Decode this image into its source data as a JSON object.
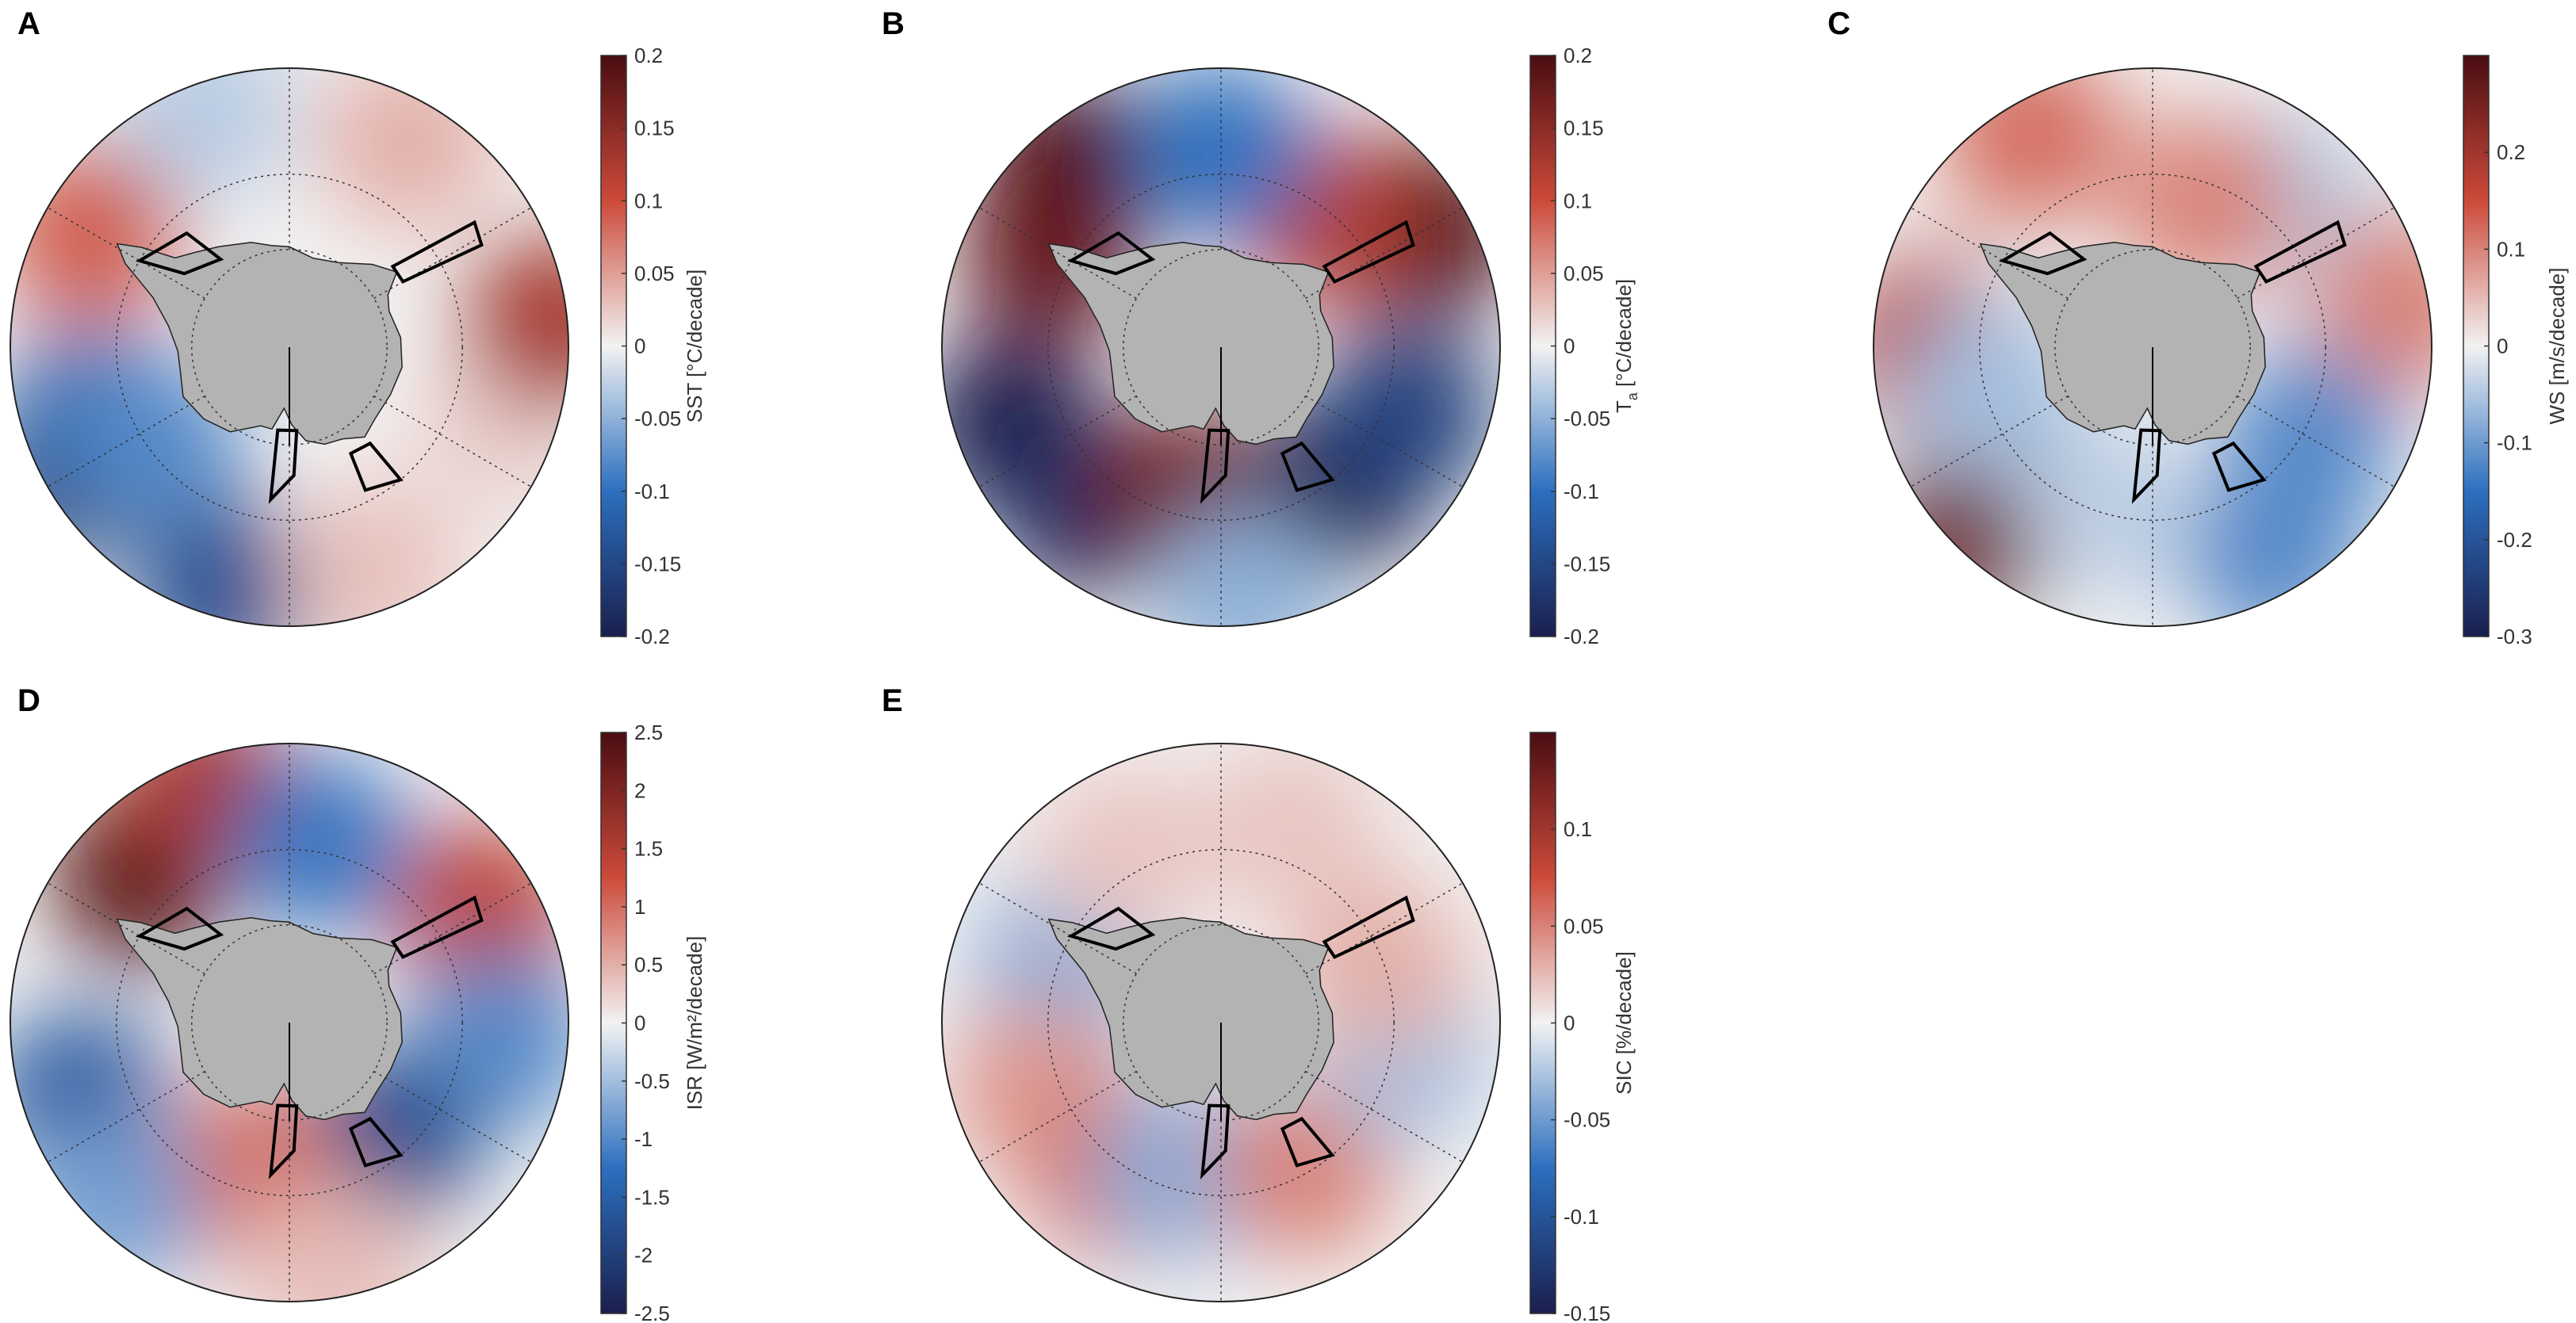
{
  "figure": {
    "panels": [
      "A",
      "B",
      "C",
      "D",
      "E"
    ]
  },
  "colors": {
    "land": "#b3b3b3",
    "cmap_low": "#1a1f4d",
    "cmap_mid_low": "#2c6fbf",
    "cmap_center": "#f2f2f2",
    "cmap_mid_high": "#cc4a3a",
    "cmap_high": "#4a0d12",
    "outline": "#000000"
  },
  "chart_data": [
    {
      "type": "heatmap",
      "panel": "A",
      "projection": "south-polar-stereographic",
      "colorbar": {
        "label": "SST [°C/decade]",
        "range": [
          -0.2,
          0.2
        ],
        "ticks": [
          "0.2",
          "0.15",
          "0.1",
          "0.05",
          "0",
          "-0.05",
          "-0.1",
          "-0.15",
          "-0.2"
        ]
      },
      "regions": [
        {
          "lon": 240,
          "r": 0.9,
          "value": -0.19
        },
        {
          "lon": 250,
          "r": 0.75,
          "value": -0.12
        },
        {
          "lon": 235,
          "r": 0.6,
          "value": -0.08
        },
        {
          "lon": 195,
          "r": 0.9,
          "value": -0.14
        },
        {
          "lon": 300,
          "r": 0.82,
          "value": 0.09
        },
        {
          "lon": 30,
          "r": 0.85,
          "value": 0.04
        },
        {
          "lon": 110,
          "r": 0.8,
          "value": 0.02
        },
        {
          "lon": 160,
          "r": 0.85,
          "value": 0.03
        },
        {
          "lon": 85,
          "r": 0.95,
          "value": 0.13
        },
        {
          "lon": 340,
          "r": 0.9,
          "value": -0.03
        }
      ]
    },
    {
      "type": "heatmap",
      "panel": "B",
      "projection": "south-polar-stereographic",
      "colorbar": {
        "label": "Ta [°C/decade]",
        "label_main": "T",
        "label_sub": "a",
        "label_rest": " [°C/decade]",
        "range": [
          -0.2,
          0.2
        ],
        "ticks": [
          "0.2",
          "0.15",
          "0.1",
          "0.05",
          "0",
          "-0.05",
          "-0.1",
          "-0.15",
          "-0.2"
        ]
      },
      "regions": [
        {
          "lon": 320,
          "r": 0.85,
          "value": 0.2
        },
        {
          "lon": 300,
          "r": 0.7,
          "value": 0.18
        },
        {
          "lon": 60,
          "r": 0.85,
          "value": 0.2
        },
        {
          "lon": 40,
          "r": 0.6,
          "value": 0.12
        },
        {
          "lon": 0,
          "r": 0.7,
          "value": -0.1
        },
        {
          "lon": 250,
          "r": 0.8,
          "value": -0.2
        },
        {
          "lon": 220,
          "r": 0.75,
          "value": -0.18
        },
        {
          "lon": 195,
          "r": 0.55,
          "value": 0.17
        },
        {
          "lon": 140,
          "r": 0.65,
          "value": -0.2
        },
        {
          "lon": 110,
          "r": 0.7,
          "value": -0.16
        },
        {
          "lon": 175,
          "r": 0.9,
          "value": -0.05
        }
      ]
    },
    {
      "type": "heatmap",
      "panel": "C",
      "projection": "south-polar-stereographic",
      "colorbar": {
        "label": "WS [m/s/decade]",
        "range": [
          -0.3,
          0.3
        ],
        "ticks": [
          "0.2",
          "0.1",
          "0",
          "-0.1",
          "-0.2",
          "-0.3"
        ]
      },
      "regions": [
        {
          "lon": 330,
          "r": 0.88,
          "value": 0.12
        },
        {
          "lon": 270,
          "r": 0.8,
          "value": 0.18
        },
        {
          "lon": 225,
          "r": 0.92,
          "value": 0.26
        },
        {
          "lon": 40,
          "r": 0.7,
          "value": -0.05
        },
        {
          "lon": 20,
          "r": 0.55,
          "value": 0.1
        },
        {
          "lon": 80,
          "r": 0.9,
          "value": 0.1
        },
        {
          "lon": 120,
          "r": 0.65,
          "value": -0.12
        },
        {
          "lon": 150,
          "r": 0.85,
          "value": -0.12
        },
        {
          "lon": 195,
          "r": 0.6,
          "value": -0.04
        },
        {
          "lon": 255,
          "r": 0.6,
          "value": -0.06
        }
      ]
    },
    {
      "type": "heatmap",
      "panel": "D",
      "projection": "south-polar-stereographic",
      "colorbar": {
        "label": "ISR [W/m²/decade]",
        "range": [
          -2.5,
          2.5
        ],
        "ticks": [
          "2.5",
          "2",
          "1.5",
          "1",
          "0.5",
          "0",
          "-0.5",
          "-1",
          "-1.5",
          "-2",
          "-2.5"
        ]
      },
      "regions": [
        {
          "lon": 315,
          "r": 0.75,
          "value": 2.4
        },
        {
          "lon": 340,
          "r": 0.9,
          "value": 1.6
        },
        {
          "lon": 10,
          "r": 0.65,
          "value": -1.2
        },
        {
          "lon": 60,
          "r": 0.8,
          "value": 1.4
        },
        {
          "lon": 95,
          "r": 0.75,
          "value": -1.0
        },
        {
          "lon": 140,
          "r": 0.55,
          "value": -1.8
        },
        {
          "lon": 195,
          "r": 0.55,
          "value": 1.0
        },
        {
          "lon": 250,
          "r": 0.8,
          "value": -1.6
        },
        {
          "lon": 225,
          "r": 0.9,
          "value": -0.8
        },
        {
          "lon": 170,
          "r": 0.9,
          "value": 0.4
        }
      ]
    },
    {
      "type": "heatmap",
      "panel": "E",
      "projection": "south-polar-stereographic",
      "colorbar": {
        "label": "SIC [%/decade]",
        "range": [
          -0.15,
          0.15
        ],
        "ticks": [
          "0.1",
          "0.05",
          "0",
          "-0.05",
          "-0.1",
          "-0.15"
        ]
      },
      "regions": [
        {
          "lon": 290,
          "r": 0.6,
          "value": -0.04
        },
        {
          "lon": 250,
          "r": 0.7,
          "value": 0.04
        },
        {
          "lon": 215,
          "r": 0.65,
          "value": 0.06
        },
        {
          "lon": 195,
          "r": 0.55,
          "value": -0.04
        },
        {
          "lon": 150,
          "r": 0.6,
          "value": 0.05
        },
        {
          "lon": 100,
          "r": 0.65,
          "value": -0.03
        },
        {
          "lon": 70,
          "r": 0.6,
          "value": 0.03
        },
        {
          "lon": 20,
          "r": 0.75,
          "value": 0.02
        },
        {
          "lon": 330,
          "r": 0.7,
          "value": 0.02
        }
      ]
    }
  ]
}
